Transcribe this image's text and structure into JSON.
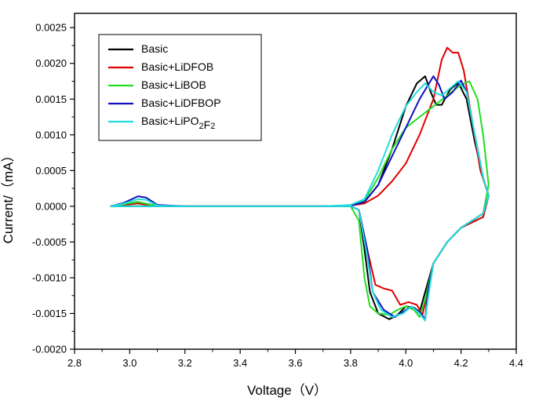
{
  "chart_data": {
    "type": "line",
    "title": "",
    "xlabel": "Voltage（V）",
    "ylabel": "Current/（mA）",
    "xlim": [
      2.8,
      4.4
    ],
    "ylim": [
      -0.002,
      0.0027
    ],
    "x_ticks": [
      "2.8",
      "3.0",
      "3.2",
      "3.4",
      "3.6",
      "3.8",
      "4.0",
      "4.2",
      "4.4"
    ],
    "y_ticks": [
      "-0.0020",
      "-0.0015",
      "-0.0010",
      "-0.0005",
      "0.0000",
      "0.0005",
      "0.0010",
      "0.0015",
      "0.0020",
      "0.0025"
    ],
    "grid": false,
    "legend_position": "top-left",
    "series": [
      {
        "name": "Basic",
        "color": "#000000",
        "anodic": [
          [
            2.93,
            0.0
          ],
          [
            2.98,
            3e-05
          ],
          [
            3.03,
            6e-05
          ],
          [
            3.08,
            2e-05
          ],
          [
            3.15,
            0.0
          ],
          [
            3.7,
            0.0
          ],
          [
            3.8,
            1e-05
          ],
          [
            3.85,
            6e-05
          ],
          [
            3.9,
            0.0003
          ],
          [
            3.95,
            0.0008
          ],
          [
            4.0,
            0.0014
          ],
          [
            4.04,
            0.00172
          ],
          [
            4.07,
            0.00182
          ],
          [
            4.09,
            0.0016
          ],
          [
            4.11,
            0.00142
          ],
          [
            4.13,
            0.00142
          ],
          [
            4.16,
            0.00163
          ],
          [
            4.19,
            0.00173
          ],
          [
            4.22,
            0.0015
          ],
          [
            4.25,
            0.0009
          ],
          [
            4.28,
            0.0004
          ],
          [
            4.3,
            0.00015
          ]
        ],
        "cathodic": [
          [
            4.3,
            0.00015
          ],
          [
            4.28,
            -0.00015
          ],
          [
            4.2,
            -0.0003
          ],
          [
            4.15,
            -0.0005
          ],
          [
            4.1,
            -0.0008
          ],
          [
            4.07,
            -0.0012
          ],
          [
            4.05,
            -0.00148
          ],
          [
            4.03,
            -0.00142
          ],
          [
            4.0,
            -0.0014
          ],
          [
            3.97,
            -0.00152
          ],
          [
            3.94,
            -0.00158
          ],
          [
            3.9,
            -0.0015
          ],
          [
            3.87,
            -0.0012
          ],
          [
            3.85,
            -0.0006
          ],
          [
            3.83,
            -5e-05
          ],
          [
            3.8,
            0.0
          ],
          [
            3.7,
            0.0
          ],
          [
            3.2,
            0.0
          ],
          [
            2.93,
            0.0
          ]
        ]
      },
      {
        "name": "Basic+LiDFOB",
        "color": "#e00000",
        "anodic": [
          [
            2.93,
            0.0
          ],
          [
            2.98,
            2e-05
          ],
          [
            3.03,
            4e-05
          ],
          [
            3.08,
            1e-05
          ],
          [
            3.15,
            0.0
          ],
          [
            3.7,
            0.0
          ],
          [
            3.8,
            1e-05
          ],
          [
            3.85,
            4e-05
          ],
          [
            3.9,
            0.00015
          ],
          [
            3.95,
            0.00035
          ],
          [
            4.0,
            0.0006
          ],
          [
            4.05,
            0.001
          ],
          [
            4.1,
            0.0015
          ],
          [
            4.13,
            0.00205
          ],
          [
            4.15,
            0.00222
          ],
          [
            4.17,
            0.00215
          ],
          [
            4.19,
            0.00215
          ],
          [
            4.21,
            0.0019
          ],
          [
            4.24,
            0.0012
          ],
          [
            4.27,
            0.0005
          ],
          [
            4.3,
            0.00015
          ]
        ],
        "cathodic": [
          [
            4.3,
            0.00015
          ],
          [
            4.28,
            -0.00015
          ],
          [
            4.2,
            -0.0003
          ],
          [
            4.15,
            -0.0005
          ],
          [
            4.1,
            -0.0008
          ],
          [
            4.08,
            -0.0012
          ],
          [
            4.06,
            -0.00152
          ],
          [
            4.04,
            -0.00138
          ],
          [
            4.01,
            -0.00134
          ],
          [
            3.98,
            -0.00138
          ],
          [
            3.95,
            -0.00118
          ],
          [
            3.92,
            -0.00115
          ],
          [
            3.89,
            -0.0011
          ],
          [
            3.86,
            -0.0006
          ],
          [
            3.83,
            -5e-05
          ],
          [
            3.8,
            0.0
          ],
          [
            3.7,
            0.0
          ],
          [
            3.2,
            0.0
          ],
          [
            2.93,
            0.0
          ]
        ]
      },
      {
        "name": "Basic+LiBOB",
        "color": "#22dd22",
        "anodic": [
          [
            2.93,
            0.0
          ],
          [
            2.98,
            3e-05
          ],
          [
            3.03,
            6e-05
          ],
          [
            3.08,
            2e-05
          ],
          [
            3.15,
            0.0
          ],
          [
            3.7,
            0.0
          ],
          [
            3.8,
            1e-05
          ],
          [
            3.85,
            8e-05
          ],
          [
            3.9,
            0.0004
          ],
          [
            3.95,
            0.0008
          ],
          [
            4.0,
            0.0011
          ],
          [
            4.05,
            0.00125
          ],
          [
            4.1,
            0.0014
          ],
          [
            4.15,
            0.00155
          ],
          [
            4.2,
            0.0017
          ],
          [
            4.23,
            0.00175
          ],
          [
            4.26,
            0.0015
          ],
          [
            4.28,
            0.001
          ],
          [
            4.3,
            0.0003
          ]
        ],
        "cathodic": [
          [
            4.3,
            0.0003
          ],
          [
            4.28,
            -0.0001
          ],
          [
            4.2,
            -0.0003
          ],
          [
            4.15,
            -0.0005
          ],
          [
            4.1,
            -0.0008
          ],
          [
            4.07,
            -0.0013
          ],
          [
            4.05,
            -0.00155
          ],
          [
            4.03,
            -0.00145
          ],
          [
            4.0,
            -0.0014
          ],
          [
            3.97,
            -0.00145
          ],
          [
            3.94,
            -0.00152
          ],
          [
            3.9,
            -0.0015
          ],
          [
            3.87,
            -0.0014
          ],
          [
            3.85,
            -0.001
          ],
          [
            3.83,
            -0.0002
          ],
          [
            3.8,
            0.0
          ],
          [
            3.7,
            0.0
          ],
          [
            3.2,
            0.0
          ],
          [
            2.93,
            0.0
          ]
        ]
      },
      {
        "name": "Basic+LiDFBOP",
        "color": "#1010c0",
        "anodic": [
          [
            2.93,
            0.0
          ],
          [
            2.98,
            5e-05
          ],
          [
            3.03,
            0.00014
          ],
          [
            3.06,
            0.00012
          ],
          [
            3.1,
            2e-05
          ],
          [
            3.2,
            0.0
          ],
          [
            3.7,
            0.0
          ],
          [
            3.8,
            1e-05
          ],
          [
            3.85,
            6e-05
          ],
          [
            3.9,
            0.0003
          ],
          [
            3.95,
            0.0007
          ],
          [
            4.0,
            0.0011
          ],
          [
            4.05,
            0.0015
          ],
          [
            4.1,
            0.00182
          ],
          [
            4.12,
            0.0017
          ],
          [
            4.14,
            0.0015
          ],
          [
            4.17,
            0.0016
          ],
          [
            4.2,
            0.00176
          ],
          [
            4.22,
            0.0016
          ],
          [
            4.25,
            0.001
          ],
          [
            4.28,
            0.0004
          ],
          [
            4.3,
            0.00015
          ]
        ],
        "cathodic": [
          [
            4.3,
            0.00015
          ],
          [
            4.28,
            -0.0001
          ],
          [
            4.2,
            -0.0003
          ],
          [
            4.15,
            -0.0005
          ],
          [
            4.1,
            -0.0008
          ],
          [
            4.08,
            -0.0012
          ],
          [
            4.07,
            -0.00158
          ],
          [
            4.05,
            -0.00148
          ],
          [
            4.02,
            -0.0014
          ],
          [
            3.99,
            -0.00148
          ],
          [
            3.96,
            -0.00155
          ],
          [
            3.92,
            -0.00145
          ],
          [
            3.88,
            -0.0012
          ],
          [
            3.86,
            -0.0006
          ],
          [
            3.83,
            -5e-05
          ],
          [
            3.8,
            0.0
          ],
          [
            3.7,
            0.0
          ],
          [
            3.2,
            0.0
          ],
          [
            2.93,
            0.0
          ]
        ]
      },
      {
        "name": "Basic+LiPO2F2",
        "color": "#22dddd",
        "anodic": [
          [
            2.93,
            0.0
          ],
          [
            2.98,
            4e-05
          ],
          [
            3.03,
            0.0001
          ],
          [
            3.06,
            9e-05
          ],
          [
            3.1,
            1e-05
          ],
          [
            3.2,
            0.0
          ],
          [
            3.7,
            0.0
          ],
          [
            3.8,
            2e-05
          ],
          [
            3.85,
            0.0001
          ],
          [
            3.9,
            0.0005
          ],
          [
            3.95,
            0.001
          ],
          [
            4.0,
            0.0014
          ],
          [
            4.04,
            0.0016
          ],
          [
            4.07,
            0.00172
          ],
          [
            4.1,
            0.0016
          ],
          [
            4.13,
            0.00155
          ],
          [
            4.16,
            0.00165
          ],
          [
            4.19,
            0.00175
          ],
          [
            4.22,
            0.0016
          ],
          [
            4.25,
            0.001
          ],
          [
            4.28,
            0.0004
          ],
          [
            4.3,
            0.00015
          ]
        ],
        "cathodic": [
          [
            4.3,
            0.00015
          ],
          [
            4.28,
            -0.0001
          ],
          [
            4.2,
            -0.0003
          ],
          [
            4.15,
            -0.0005
          ],
          [
            4.1,
            -0.0008
          ],
          [
            4.08,
            -0.0013
          ],
          [
            4.07,
            -0.0016
          ],
          [
            4.05,
            -0.0015
          ],
          [
            4.02,
            -0.0014
          ],
          [
            3.99,
            -0.0015
          ],
          [
            3.95,
            -0.00155
          ],
          [
            3.91,
            -0.00145
          ],
          [
            3.88,
            -0.0012
          ],
          [
            3.86,
            -0.0007
          ],
          [
            3.83,
            -5e-05
          ],
          [
            3.8,
            0.0
          ],
          [
            3.7,
            0.0
          ],
          [
            3.2,
            0.0
          ],
          [
            2.93,
            0.0
          ]
        ]
      }
    ],
    "legend": [
      {
        "base": "Basic",
        "sub1": "",
        "mid": "",
        "sub2": ""
      },
      {
        "base": "Basic+LiDFOB",
        "sub1": "",
        "mid": "",
        "sub2": ""
      },
      {
        "base": "Basic+LiBOB",
        "sub1": "",
        "mid": "",
        "sub2": ""
      },
      {
        "base": "Basic+LiDFBOP",
        "sub1": "",
        "mid": "",
        "sub2": ""
      },
      {
        "base": "Basic+LiPO",
        "sub1": "2",
        "mid": "F",
        "sub2": "2"
      }
    ]
  }
}
